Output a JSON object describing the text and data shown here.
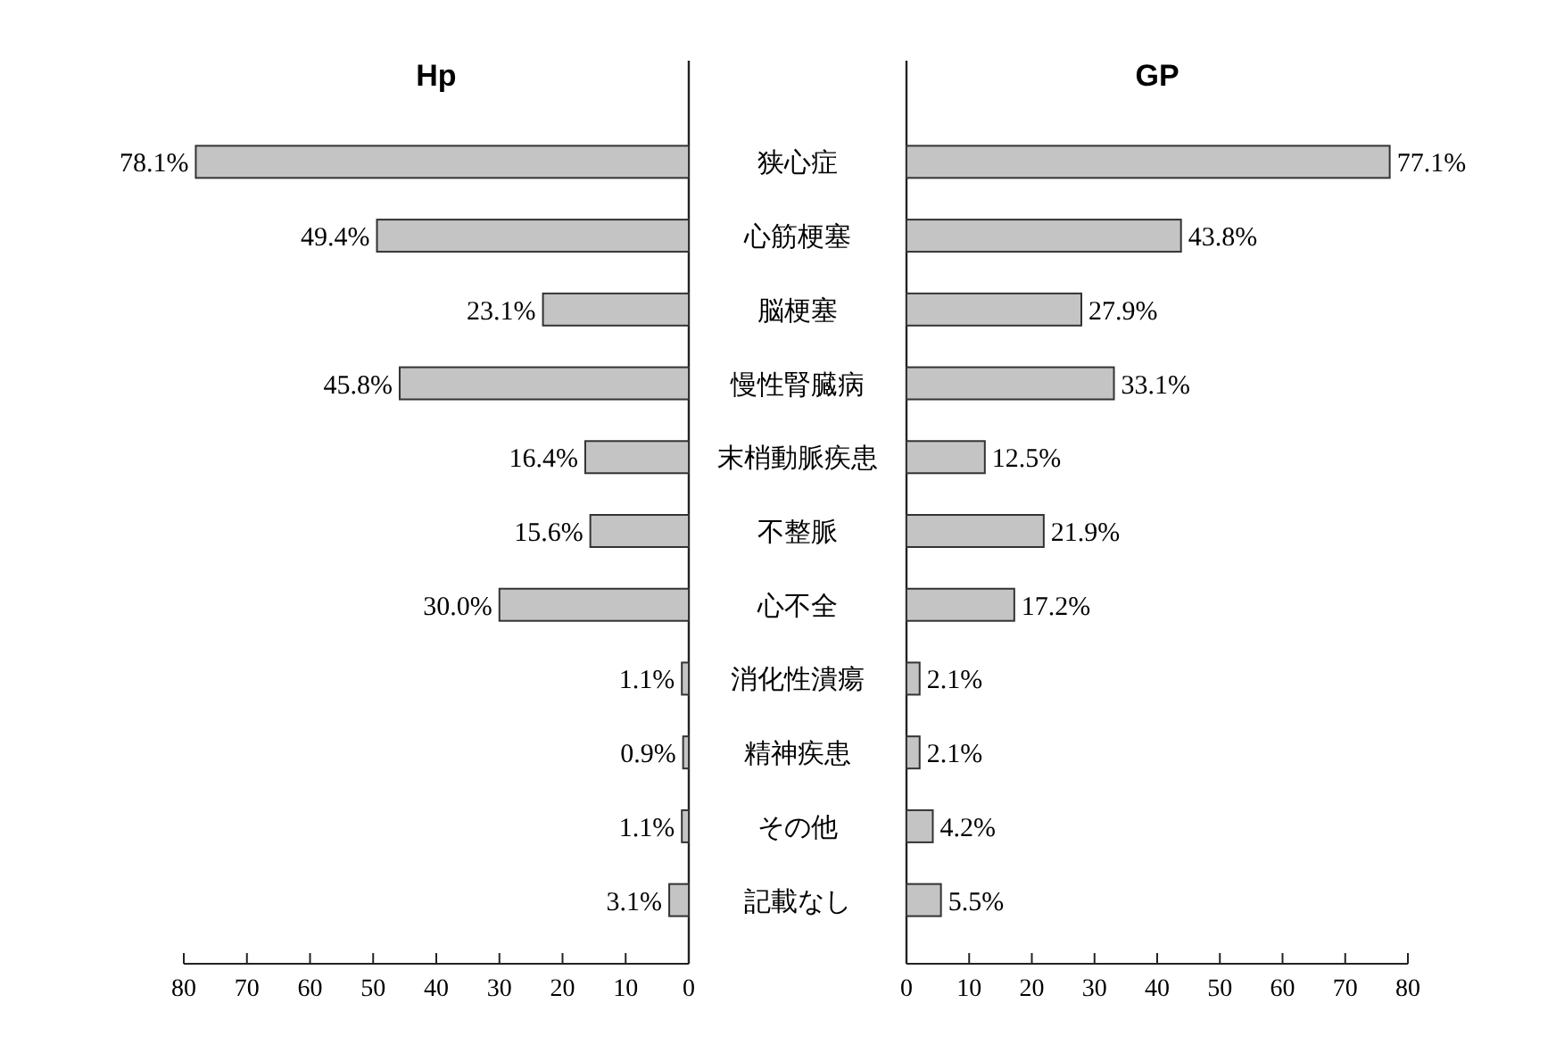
{
  "chart_data": [
    {
      "type": "bar",
      "orientation": "horizontal",
      "title": "Hp",
      "categories": [
        "狭心症",
        "心筋梗塞",
        "脳梗塞",
        "慢性腎臓病",
        "末梢動脈疾患",
        "不整脈",
        "心不全",
        "消化性潰瘍",
        "精神疾患",
        "その他",
        "記載なし"
      ],
      "values": [
        78.1,
        49.4,
        23.1,
        45.8,
        16.4,
        15.6,
        30.0,
        1.1,
        0.9,
        1.1,
        3.1
      ],
      "value_labels": [
        "78.1%",
        "49.4%",
        "23.1%",
        "45.8%",
        "16.4%",
        "15.6%",
        "30.0%",
        "1.1%",
        "0.9%",
        "1.1%",
        "3.1%"
      ],
      "color": "#c4c4c4",
      "xlim": [
        80,
        0
      ],
      "xticks": [
        80,
        70,
        60,
        50,
        40,
        30,
        20,
        10,
        0
      ]
    },
    {
      "type": "bar",
      "orientation": "horizontal",
      "title": "GP",
      "categories": [
        null,
        null,
        null,
        null,
        null,
        null,
        null,
        null,
        null,
        null,
        null
      ],
      "values": [
        77.1,
        43.8,
        27.9,
        33.1,
        12.5,
        21.9,
        17.2,
        2.1,
        2.1,
        4.2,
        5.5
      ],
      "value_labels": [
        "77.1%",
        "43.8%",
        "27.9%",
        "33.1%",
        "12.5%",
        "21.9%",
        "17.2%",
        "2.1%",
        "2.1%",
        "4.2%",
        "5.5%"
      ],
      "color": "#c4c4c4",
      "xlim": [
        0,
        80
      ],
      "xticks": [
        0,
        10,
        20,
        30,
        40,
        50,
        60,
        70,
        80
      ],
      "tick_labels": "x"
    }
  ]
}
